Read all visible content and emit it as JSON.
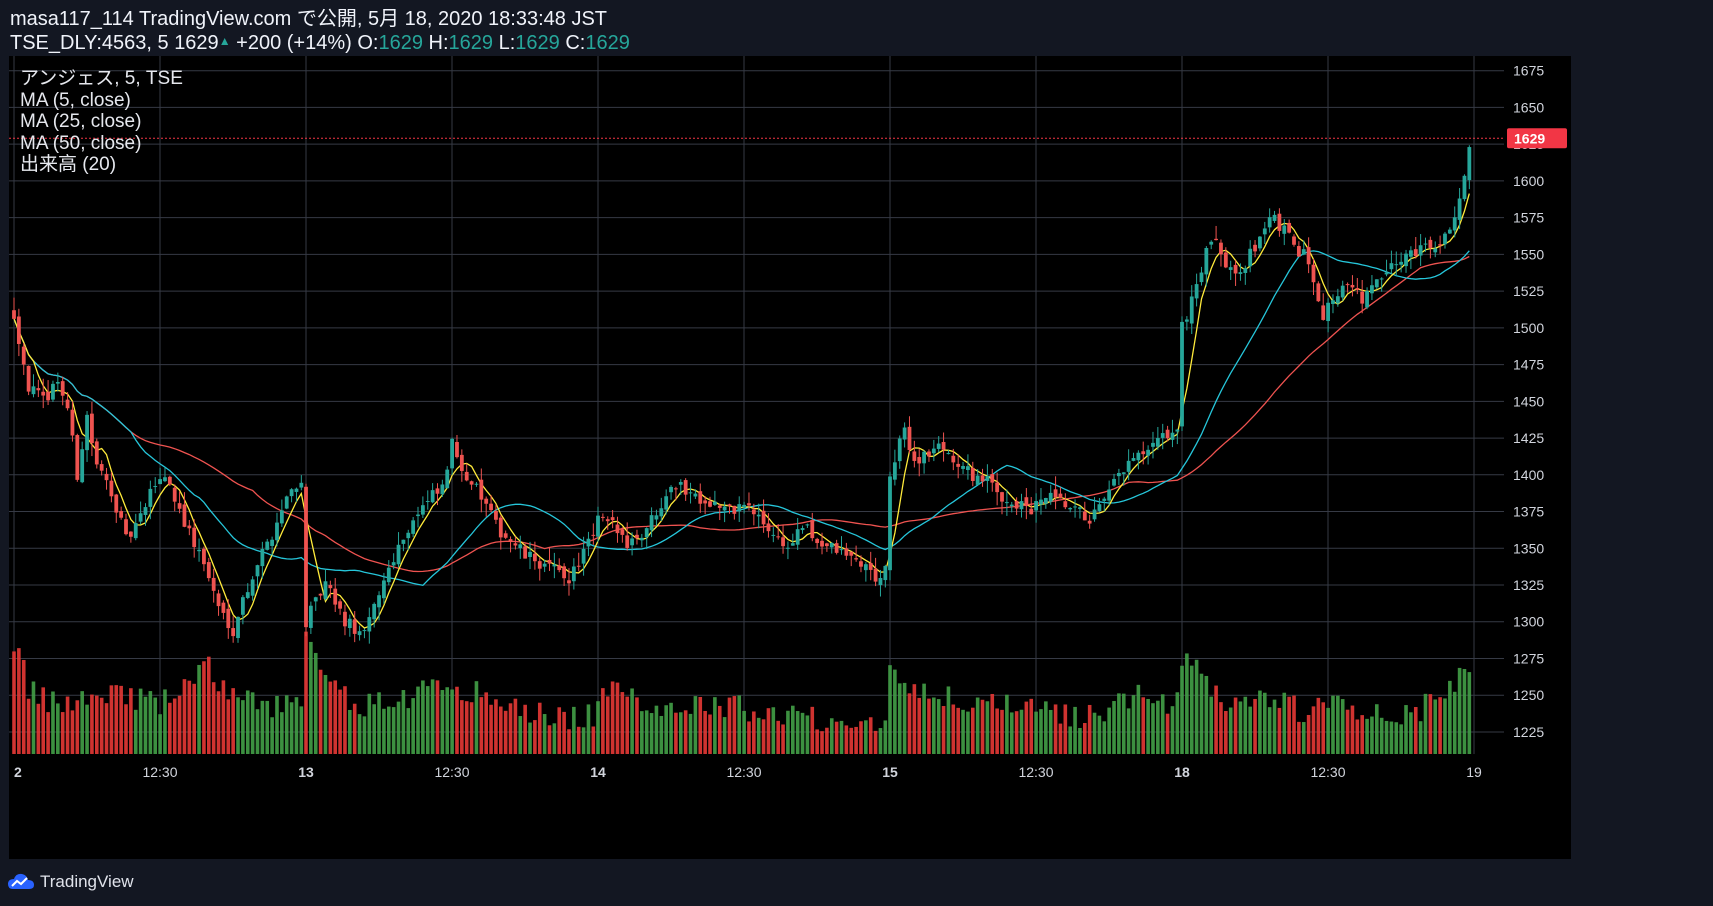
{
  "header": {
    "line1": "masa117_114 TradingView.com で公開, 5月 18, 2020 18:33:48 JST",
    "symbol": "TSE_DLY:4563, 5",
    "last": "1629",
    "change": "+200 (+14%)",
    "o_label": "O:",
    "o_value": "1629",
    "h_label": "H:",
    "h_value": "1629",
    "l_label": "L:",
    "l_value": "1629",
    "c_label": "C:",
    "c_value": "1629"
  },
  "legend": {
    "name": "アンジェス, 5, TSE",
    "ma5": "MA (5, close)",
    "ma25": "MA (25, close)",
    "ma50": "MA (50, close)",
    "volume": "出来高 (20)"
  },
  "price_tag": "1629",
  "footer": {
    "brand": "TradingView"
  },
  "colors": {
    "background": "#131722",
    "plot_bg": "#000000",
    "grid": "#363a45",
    "up": "#26a69a",
    "down": "#ef5350",
    "vol_up": "#43a047",
    "vol_down": "#e53935",
    "ma5": "#ffeb3b",
    "ma25": "#26c6da",
    "ma50": "#ef5350",
    "price_tag": "#f23645"
  },
  "chart_data": {
    "type": "candlestick",
    "symbol": "TSE_DLY:4563",
    "interval": "5",
    "ylim": [
      1210,
      1685
    ],
    "y_ticks": [
      1225,
      1250,
      1275,
      1300,
      1325,
      1350,
      1375,
      1400,
      1425,
      1450,
      1475,
      1500,
      1525,
      1550,
      1575,
      1600,
      1625,
      1650,
      1675
    ],
    "x_ticks": [
      "2",
      "12:30",
      "13",
      "12:30",
      "14",
      "12:30",
      "15",
      "12:30",
      "18",
      "12:30",
      "19"
    ],
    "x_tick_bold": [
      true,
      false,
      true,
      false,
      true,
      false,
      true,
      false,
      true,
      false,
      false
    ],
    "last_price": 1629,
    "candles_per_day": 60,
    "days": [
      {
        "label": "2",
        "close_path": [
          [
            0,
            1510
          ],
          [
            3,
            1460
          ],
          [
            6,
            1450
          ],
          [
            9,
            1465
          ],
          [
            11,
            1445
          ],
          [
            13,
            1400
          ],
          [
            15,
            1440
          ],
          [
            17,
            1405
          ],
          [
            20,
            1390
          ],
          [
            23,
            1355
          ],
          [
            26,
            1370
          ],
          [
            29,
            1395
          ],
          [
            31,
            1400
          ],
          [
            33,
            1385
          ],
          [
            36,
            1360
          ],
          [
            39,
            1340
          ],
          [
            42,
            1310
          ],
          [
            45,
            1295
          ],
          [
            47,
            1315
          ],
          [
            50,
            1340
          ],
          [
            53,
            1360
          ],
          [
            56,
            1385
          ],
          [
            58,
            1395
          ],
          [
            60,
            1390
          ]
        ],
        "vol_path": [
          [
            0,
            1285
          ],
          [
            3,
            1250
          ],
          [
            8,
            1240
          ],
          [
            14,
            1245
          ],
          [
            20,
            1250
          ],
          [
            30,
            1240
          ],
          [
            40,
            1265
          ],
          [
            45,
            1245
          ],
          [
            52,
            1240
          ],
          [
            60,
            1240
          ]
        ]
      },
      {
        "label": "13",
        "close_path": [
          [
            0,
            1300
          ],
          [
            4,
            1325
          ],
          [
            8,
            1300
          ],
          [
            12,
            1290
          ],
          [
            15,
            1320
          ],
          [
            18,
            1345
          ],
          [
            22,
            1370
          ],
          [
            26,
            1385
          ],
          [
            28,
            1390
          ],
          [
            30,
            1420
          ],
          [
            33,
            1400
          ],
          [
            36,
            1385
          ],
          [
            39,
            1365
          ],
          [
            42,
            1355
          ],
          [
            45,
            1345
          ],
          [
            48,
            1340
          ],
          [
            51,
            1335
          ],
          [
            54,
            1330
          ],
          [
            56,
            1340
          ],
          [
            58,
            1355
          ],
          [
            60,
            1355
          ]
        ],
        "vol_path": [
          [
            0,
            1285
          ],
          [
            5,
            1250
          ],
          [
            12,
            1240
          ],
          [
            20,
            1245
          ],
          [
            30,
            1255
          ],
          [
            40,
            1240
          ],
          [
            50,
            1232
          ],
          [
            60,
            1232
          ]
        ]
      },
      {
        "label": "14",
        "close_path": [
          [
            0,
            1370
          ],
          [
            3,
            1365
          ],
          [
            6,
            1355
          ],
          [
            9,
            1360
          ],
          [
            12,
            1375
          ],
          [
            15,
            1395
          ],
          [
            18,
            1390
          ],
          [
            21,
            1385
          ],
          [
            24,
            1380
          ],
          [
            27,
            1375
          ],
          [
            30,
            1380
          ],
          [
            33,
            1370
          ],
          [
            36,
            1360
          ],
          [
            39,
            1350
          ],
          [
            42,
            1365
          ],
          [
            45,
            1355
          ],
          [
            48,
            1350
          ],
          [
            51,
            1345
          ],
          [
            54,
            1340
          ],
          [
            57,
            1330
          ],
          [
            60,
            1335
          ]
        ],
        "vol_path": [
          [
            0,
            1250
          ],
          [
            6,
            1245
          ],
          [
            12,
            1240
          ],
          [
            20,
            1240
          ],
          [
            30,
            1238
          ],
          [
            40,
            1232
          ],
          [
            50,
            1230
          ],
          [
            60,
            1230
          ]
        ]
      },
      {
        "label": "15",
        "close_path": [
          [
            0,
            1400
          ],
          [
            3,
            1430
          ],
          [
            5,
            1410
          ],
          [
            8,
            1415
          ],
          [
            11,
            1420
          ],
          [
            14,
            1405
          ],
          [
            17,
            1400
          ],
          [
            20,
            1395
          ],
          [
            23,
            1385
          ],
          [
            26,
            1380
          ],
          [
            29,
            1375
          ],
          [
            32,
            1385
          ],
          [
            35,
            1380
          ],
          [
            38,
            1375
          ],
          [
            41,
            1370
          ],
          [
            44,
            1380
          ],
          [
            47,
            1400
          ],
          [
            50,
            1410
          ],
          [
            53,
            1415
          ],
          [
            56,
            1425
          ],
          [
            58,
            1430
          ],
          [
            60,
            1430
          ]
        ],
        "vol_path": [
          [
            0,
            1260
          ],
          [
            5,
            1255
          ],
          [
            10,
            1245
          ],
          [
            20,
            1240
          ],
          [
            30,
            1235
          ],
          [
            40,
            1232
          ],
          [
            50,
            1245
          ],
          [
            60,
            1240
          ]
        ]
      },
      {
        "label": "18",
        "close_path": [
          [
            0,
            1500
          ],
          [
            2,
            1520
          ],
          [
            4,
            1540
          ],
          [
            6,
            1560
          ],
          [
            9,
            1545
          ],
          [
            12,
            1540
          ],
          [
            15,
            1555
          ],
          [
            17,
            1570
          ],
          [
            19,
            1575
          ],
          [
            21,
            1565
          ],
          [
            23,
            1555
          ],
          [
            25,
            1550
          ],
          [
            27,
            1535
          ],
          [
            29,
            1510
          ],
          [
            31,
            1520
          ],
          [
            33,
            1530
          ],
          [
            35,
            1525
          ],
          [
            37,
            1520
          ],
          [
            40,
            1530
          ],
          [
            43,
            1540
          ],
          [
            46,
            1550
          ],
          [
            49,
            1555
          ],
          [
            52,
            1555
          ],
          [
            54,
            1565
          ],
          [
            56,
            1575
          ],
          [
            58,
            1600
          ],
          [
            59,
            1620
          ],
          [
            60,
            1629
          ]
        ],
        "vol_path": [
          [
            0,
            1270
          ],
          [
            4,
            1260
          ],
          [
            10,
            1240
          ],
          [
            18,
            1245
          ],
          [
            25,
            1235
          ],
          [
            30,
            1240
          ],
          [
            38,
            1235
          ],
          [
            46,
            1235
          ],
          [
            52,
            1240
          ],
          [
            56,
            1250
          ],
          [
            58,
            1262
          ],
          [
            60,
            1275
          ]
        ]
      }
    ]
  }
}
